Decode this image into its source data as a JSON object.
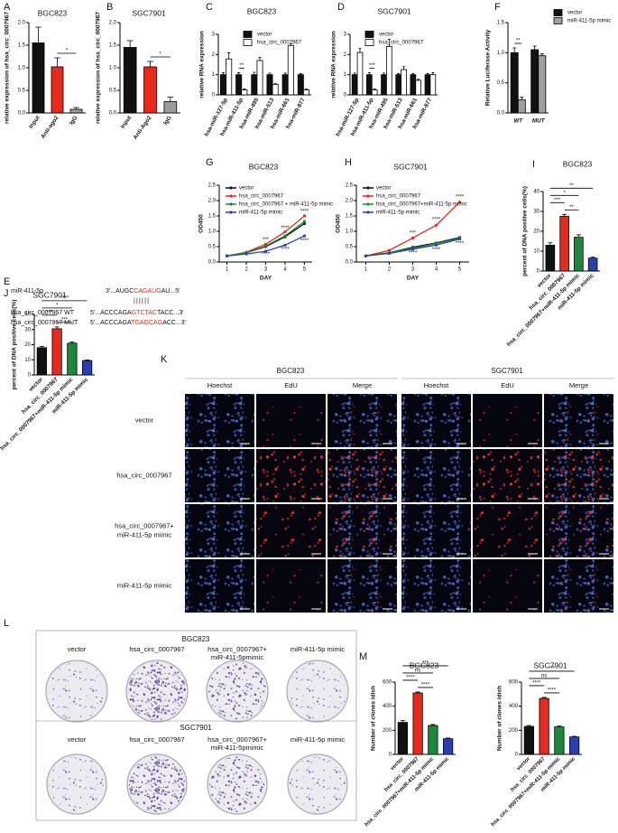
{
  "chart_data": [
    {
      "type": "bar",
      "label": "A",
      "title": "BGC823",
      "ylabel": "relative expression of hsa_circ_0007967",
      "categories": [
        "Input",
        "Anti-ago2",
        "IgG"
      ],
      "values": [
        1.55,
        1.02,
        0.08
      ],
      "errors": [
        0.35,
        0.2,
        0.04
      ],
      "colors": [
        "#111111",
        "#e8291c",
        "#9a9a9a"
      ],
      "ylim": [
        0,
        2
      ],
      "yticks": [
        {
          "value": 0,
          "label": "0.0"
        },
        0.5,
        {
          "value": 1,
          "label": "1.0"
        },
        1.5,
        {
          "value": 2,
          "label": "2.0"
        }
      ],
      "annotations": [
        "*"
      ]
    },
    {
      "type": "bar",
      "label": "B",
      "title": "SGC7901",
      "ylabel": "relative expression of hsa_circ_0007967",
      "categories": [
        "Input",
        "Anti-Ago2",
        "IgG"
      ],
      "values": [
        1.45,
        1.02,
        0.25
      ],
      "errors": [
        0.15,
        0.12,
        0.1
      ],
      "colors": [
        "#111111",
        "#e8291c",
        "#9a9a9a"
      ],
      "ylim": [
        0,
        2
      ],
      "yticks": [
        {
          "value": 0,
          "label": "0.0"
        },
        0.5,
        {
          "value": 1,
          "label": "1.0"
        },
        1.5,
        {
          "value": 2,
          "label": "2.0"
        }
      ],
      "annotations": [
        "*"
      ]
    },
    {
      "type": "bar",
      "label": "C",
      "title": "BGC823",
      "ylabel": "relative RNA expression",
      "categories": [
        "hsa-miR-127-5p",
        "hsa-miR-411-5p",
        "hsa-miR-495",
        "hsa-miR-513",
        "hsa-miR-661",
        "hsa-miR-877"
      ],
      "series": [
        {
          "name": "vector",
          "color": "#111111",
          "values": [
            1,
            1,
            1,
            1,
            1,
            1
          ],
          "errors": [
            0.1,
            0.1,
            0.12,
            0.08,
            0.08,
            0.05
          ]
        },
        {
          "name": "hsa_circ_0007967",
          "color": "#ffffff",
          "values": [
            1.78,
            0.25,
            1.7,
            0.52,
            2.45,
            0.25
          ],
          "errors": [
            0.3,
            0.05,
            0.15,
            0.05,
            0.08,
            0.04
          ]
        }
      ],
      "ylim": [
        0,
        3
      ],
      "yticks": [
        0,
        1,
        2,
        3
      ],
      "annotations": [
        "**"
      ]
    },
    {
      "type": "bar",
      "label": "D",
      "title": "SGC7901",
      "ylabel": "relative RNA expression",
      "categories": [
        "hsa-miR-127-5p",
        "hsa-miR-411-5p",
        "hsa-miR-495",
        "hsa-miR-513",
        "hsa-miR-661",
        "hsa-miR-877"
      ],
      "series": [
        {
          "name": "vector",
          "color": "#111111",
          "values": [
            1,
            1,
            1,
            1,
            1,
            1
          ],
          "errors": [
            0.08,
            0.1,
            0.08,
            0.06,
            0.06,
            0.06
          ]
        },
        {
          "name": "hsa_circ_0007967",
          "color": "#ffffff",
          "values": [
            2.1,
            0.25,
            2.4,
            1.25,
            0.72,
            1.0
          ],
          "errors": [
            0.2,
            0.05,
            0.35,
            0.15,
            0.05,
            0.1
          ]
        }
      ],
      "ylim": [
        0,
        3
      ],
      "yticks": [
        0,
        1,
        2,
        3
      ],
      "annotations": [
        "***"
      ]
    },
    {
      "type": "bar",
      "label": "F",
      "ylabel": "Relative Luciferase Activity",
      "categories": [
        "WT",
        "MUT"
      ],
      "series": [
        {
          "name": "vector",
          "color": "#111111",
          "values": [
            1.0,
            1.05
          ],
          "errors": [
            0.08,
            0.06
          ]
        },
        {
          "name": "miR-411-5p mimic",
          "color": "#a0a0a0",
          "values": [
            0.22,
            0.95
          ],
          "errors": [
            0.04,
            0.03
          ]
        }
      ],
      "ylim": [
        0,
        1.5
      ],
      "yticks": [
        {
          "value": 0,
          "label": "0.0"
        },
        0.5,
        {
          "value": 1,
          "label": "1.0"
        },
        1.5
      ],
      "annotations": [
        "**"
      ]
    },
    {
      "type": "line",
      "label": "G",
      "title": "BGC823",
      "xlabel": "DAY",
      "ylabel": "OD450",
      "x": [
        1,
        2,
        3,
        4,
        5
      ],
      "xlim": [
        0.6,
        5.4
      ],
      "xticks": [
        1,
        2,
        3,
        4,
        5
      ],
      "ylim": [
        0,
        2.5
      ],
      "yticks": [
        {
          "value": 0,
          "label": "0.0"
        },
        0.5,
        {
          "value": 1,
          "label": "1.0"
        },
        1.5,
        {
          "value": 2,
          "label": "2.0"
        },
        2.5
      ],
      "series": [
        {
          "name": "vector",
          "color": "#111111",
          "values": [
            0.2,
            0.3,
            0.5,
            0.82,
            1.25
          ]
        },
        {
          "name": "hsa_circ_0007967",
          "color": "#e8291c",
          "values": [
            0.2,
            0.32,
            0.58,
            0.98,
            1.5
          ]
        },
        {
          "name": "hsa_circ_0007967 + miR-411-5p mimic",
          "color": "#1a8a3a",
          "values": [
            0.2,
            0.3,
            0.52,
            0.85,
            1.32
          ]
        },
        {
          "name": "miR-411-5p mimic",
          "color": "#2b3fb0",
          "values": [
            0.2,
            0.26,
            0.35,
            0.55,
            0.85
          ]
        }
      ],
      "annotations": [
        "****",
        "****",
        "***",
        "****",
        "****",
        "****"
      ]
    },
    {
      "type": "line",
      "label": "H",
      "title": "SGC7901",
      "xlabel": "DAY",
      "ylabel": "OD450",
      "x": [
        1,
        2,
        3,
        4,
        5
      ],
      "xlim": [
        0.6,
        5.4
      ],
      "xticks": [
        1,
        2,
        3,
        4,
        5
      ],
      "ylim": [
        0,
        2.5
      ],
      "yticks": [
        {
          "value": 0,
          "label": "0.0"
        },
        0.5,
        {
          "value": 1,
          "label": "1.0"
        },
        1.5,
        {
          "value": 2,
          "label": "2.0"
        },
        2.5
      ],
      "series": [
        {
          "name": "vector",
          "color": "#111111",
          "values": [
            0.2,
            0.3,
            0.48,
            0.62,
            0.8
          ]
        },
        {
          "name": "hsa_circ_0007967",
          "color": "#e8291c",
          "values": [
            0.2,
            0.38,
            0.78,
            1.2,
            1.95
          ]
        },
        {
          "name": "hsa_circ_0007967+miR-411-5p mimic",
          "color": "#1a8a3a",
          "values": [
            0.2,
            0.3,
            0.45,
            0.6,
            0.78
          ]
        },
        {
          "name": "miR-411-5p mimic",
          "color": "#2b3fb0",
          "values": [
            0.2,
            0.28,
            0.42,
            0.55,
            0.75
          ]
        }
      ],
      "annotations": [
        "****",
        "****",
        "***",
        "****",
        "****",
        "****"
      ]
    },
    {
      "type": "bar",
      "label": "I",
      "title": "BGC823",
      "ylabel": "percent of DNA positive cells(%)",
      "categories": [
        "vector",
        "hsa_circ_0007967",
        "hsa_circ_0007967+miR-411-5p mimic",
        "miR-411-5p mimic"
      ],
      "values": [
        13,
        27.5,
        17,
        6.5
      ],
      "errors": [
        1.2,
        1.0,
        1.2,
        0.6
      ],
      "colors": [
        "#111111",
        "#e8291c",
        "#1a8a3a",
        "#2b3fb0"
      ],
      "ylim": [
        0,
        40
      ],
      "yticks": [
        0,
        10,
        20,
        30,
        40
      ],
      "annotations": [
        "**",
        "***",
        "*",
        "**"
      ]
    },
    {
      "type": "bar",
      "label": "J",
      "title": "SGC7901",
      "ylabel": "percent of DNA positive cells(%)",
      "categories": [
        "vector",
        "hsa_circ_0007967",
        "hsa_circ_0007967+miR-411-5p mimic",
        "miR-411-5p mimic"
      ],
      "values": [
        18,
        30.5,
        21,
        9.5
      ],
      "errors": [
        0.8,
        1.2,
        0.8,
        0.4
      ],
      "colors": [
        "#111111",
        "#e8291c",
        "#1a8a3a",
        "#2b3fb0"
      ],
      "ylim": [
        0,
        40
      ],
      "yticks": [
        0,
        10,
        20,
        30,
        40
      ],
      "annotations": [
        "***",
        "***",
        "*",
        "****"
      ]
    },
    {
      "type": "bar",
      "label": "M",
      "title": "BGC823",
      "ylabel": "Number of clones /dish",
      "categories": [
        "vector",
        "hsa_circ_0007967",
        "hsa_circ_0007967+miR-411-5p mimic",
        "miR-411-5p mimic"
      ],
      "values": [
        265,
        510,
        240,
        130
      ],
      "errors": [
        15,
        8,
        8,
        6
      ],
      "colors": [
        "#111111",
        "#e8291c",
        "#1a8a3a",
        "#2b3fb0"
      ],
      "ylim": [
        0,
        600
      ],
      "yticks": [
        0,
        200,
        400,
        600
      ],
      "annotations": [
        "****",
        "****",
        "ns",
        "***"
      ]
    },
    {
      "type": "bar",
      "title": "SGC7901",
      "ylabel": "Number of clones /dish",
      "categories": [
        "vector",
        "hsa_circ_0007967",
        "hsa_circ_0007967+miR-411-5p mimic",
        "miR-411-5p mimic"
      ],
      "values": [
        232,
        465,
        228,
        145
      ],
      "errors": [
        8,
        8,
        8,
        5
      ],
      "colors": [
        "#111111",
        "#e8291c",
        "#1a8a3a",
        "#2b3fb0"
      ],
      "ylim": [
        0,
        600
      ],
      "yticks": [
        0,
        200,
        400,
        600
      ],
      "annotations": [
        "****",
        "****",
        "ns",
        "***"
      ]
    }
  ],
  "sequence_panel": {
    "label": "E",
    "mirna": {
      "name": "miR-411-5p",
      "prefix": "3'...AUGC",
      "highlight": "CAGAUG",
      "suffix": "AU...5'"
    },
    "pairing": "||||||",
    "wt": {
      "name": "hsa_circ_0007967 WT",
      "prefix": "5'...ACCCAGA",
      "highlight": "GTCTAC",
      "suffix": "TACC...3'"
    },
    "mut": {
      "name": "hsa_circ_0007967 MUT",
      "prefix": "5'...ACCCAGA",
      "highlight": "TGAGCAG",
      "suffix": "ACC...3'"
    }
  },
  "edu_panel": {
    "label": "K",
    "cell_lines": [
      "BGC823",
      "SGC7901"
    ],
    "stains": [
      "Hoechst",
      "EdU",
      "Merge"
    ],
    "rows": [
      [
        "vector"
      ],
      [
        "hsa_circ_0007967"
      ],
      [
        "hsa_circ_0007967+",
        "miR-411-5p mimic"
      ],
      [
        "miR-411-5p mimic"
      ]
    ]
  },
  "colony_panel": {
    "label": "L",
    "cell_lines": [
      "BGC823",
      "SGC7901"
    ],
    "rows": [
      [
        "vector"
      ],
      [
        "hsa_circ_0007967"
      ],
      [
        "hsa_circ_0007967+",
        "miR-411-5pmimic"
      ],
      [
        "miR-411-5p mimic"
      ]
    ]
  }
}
